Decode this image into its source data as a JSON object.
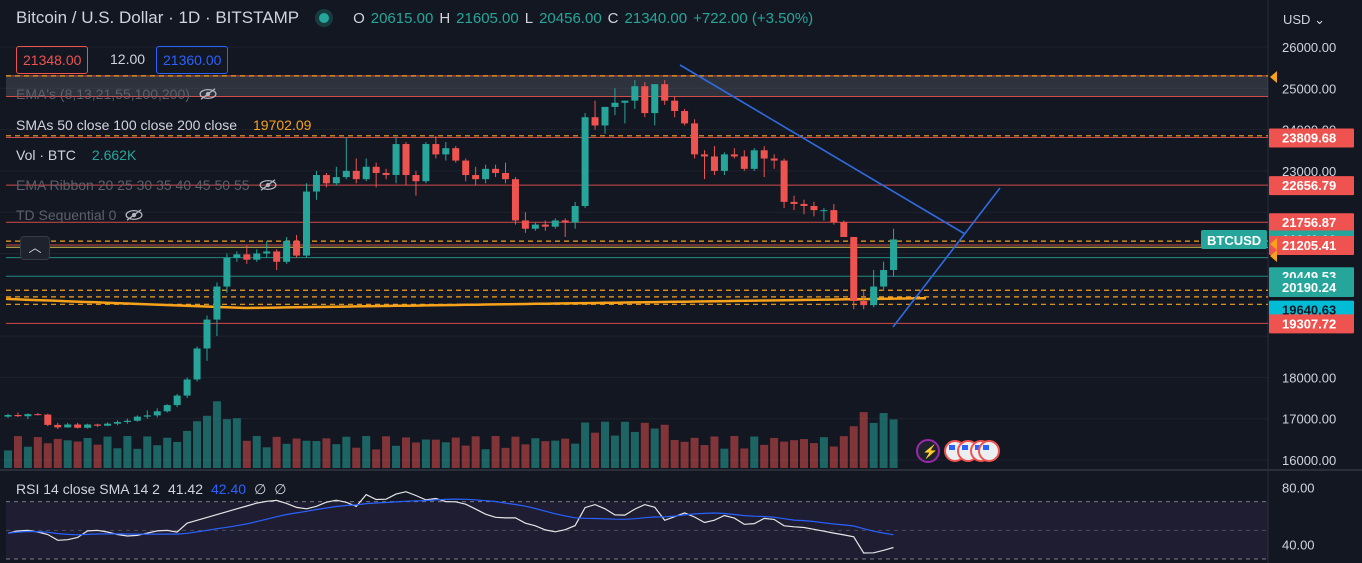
{
  "header": {
    "title": "Bitcoin / U.S. Dollar · 1D · BITSTAMP",
    "open_label": "O",
    "open": "20615.00",
    "high_label": "H",
    "high": "21605.00",
    "low_label": "L",
    "low": "20456.00",
    "close_label": "C",
    "close": "21340.00",
    "change": "+722.00 (+3.50%)"
  },
  "prices": {
    "bid": "21348.00",
    "spread": "12.00",
    "ask": "21360.00"
  },
  "currency": "USD",
  "indicators": {
    "ema": "EMA's (8,13,21,55,100,200)",
    "sma": "SMAs 50 close 100 close 200 close",
    "sma_value": "19702.09",
    "vol": "Vol · BTC",
    "vol_value": "2.662K",
    "ribbon": "EMA Ribbon 20 25 30 35 40 45 50 55",
    "td": "TD Sequential 0"
  },
  "rsi": {
    "label": "RSI 14 close SMA 14 2",
    "value1": "41.42",
    "value2": "42.40",
    "value3": "∅",
    "value4": "∅"
  },
  "colors": {
    "bg": "#131722",
    "up": "#26a69a",
    "down": "#ef5350",
    "blue": "#2962ff",
    "orange": "#f7a21b",
    "trend": "#2f6be0"
  },
  "chart_data": {
    "type": "candlestick",
    "symbol_tag": "BTCUSD",
    "ylim": [
      15900,
      26400
    ],
    "y_ticks": [
      16000,
      17000,
      18000,
      19000,
      20000,
      21000,
      22000,
      23000,
      24000,
      25000,
      26000
    ],
    "y_tick_labels": [
      "16000.00",
      "17000.00",
      "18000.00",
      "",
      "",
      "",
      "",
      "23000.00",
      "24000.00",
      "25000.00",
      "26000.00"
    ],
    "level_labels": [
      {
        "value": 23809.68,
        "label": "23809.68",
        "color": "#ef5350"
      },
      {
        "value": 22656.79,
        "label": "22656.79",
        "color": "#ef5350"
      },
      {
        "value": 21756.87,
        "label": "21756.87",
        "color": "#ef5350"
      },
      {
        "value": 21340.0,
        "label": "21340.00",
        "color": "#26a69a"
      },
      {
        "value": 21205.41,
        "label": "21205.41",
        "color": "#ef5350"
      },
      {
        "value": 20449.53,
        "label": "20449.53",
        "color": "#26a69a"
      },
      {
        "value": 20190.24,
        "label": "20190.24",
        "color": "#26a69a"
      },
      {
        "value": 19640.63,
        "label": "19640.63",
        "color": "#00bcd4"
      },
      {
        "value": 19307.72,
        "label": "19307.72",
        "color": "#ef5350"
      }
    ],
    "lines_red": [
      25300,
      24800,
      23809.68,
      22656.79,
      21756.87,
      21205.41,
      19307.72
    ],
    "lines_dashed_orange": [
      25300,
      23850,
      21300,
      20110,
      19950,
      19770
    ],
    "lines_teal": [
      20900,
      20449.53
    ],
    "candles": [
      [
        17050,
        17120,
        17020,
        17090
      ],
      [
        17090,
        17150,
        17040,
        17060
      ],
      [
        17060,
        17130,
        16990,
        17110
      ],
      [
        17110,
        17140,
        17080,
        17100
      ],
      [
        17100,
        17120,
        16820,
        16850
      ],
      [
        16850,
        16900,
        16750,
        16790
      ],
      [
        16790,
        16900,
        16780,
        16860
      ],
      [
        16860,
        16900,
        16760,
        16780
      ],
      [
        16780,
        16880,
        16760,
        16860
      ],
      [
        16860,
        16880,
        16800,
        16830
      ],
      [
        16830,
        16910,
        16820,
        16880
      ],
      [
        16880,
        16960,
        16840,
        16920
      ],
      [
        16920,
        17000,
        16880,
        16950
      ],
      [
        16950,
        17080,
        16930,
        17050
      ],
      [
        17050,
        17200,
        17000,
        17080
      ],
      [
        17080,
        17250,
        17030,
        17180
      ],
      [
        17180,
        17350,
        17150,
        17330
      ],
      [
        17330,
        17600,
        17280,
        17560
      ],
      [
        17560,
        18000,
        17500,
        17950
      ],
      [
        17950,
        18750,
        17900,
        18700
      ],
      [
        18700,
        19500,
        18400,
        19400
      ],
      [
        19400,
        20300,
        19000,
        20200
      ],
      [
        20200,
        21000,
        20050,
        20900
      ],
      [
        20900,
        21050,
        20800,
        20980
      ],
      [
        20980,
        21200,
        20750,
        20850
      ],
      [
        20850,
        21100,
        20800,
        21000
      ],
      [
        21000,
        21300,
        20900,
        21050
      ],
      [
        21050,
        21100,
        20600,
        20800
      ],
      [
        20800,
        21400,
        20750,
        21300
      ],
      [
        21300,
        21450,
        20900,
        20950
      ],
      [
        20950,
        22700,
        20900,
        22500
      ],
      [
        22500,
        23000,
        22300,
        22900
      ],
      [
        22900,
        22950,
        22600,
        22700
      ],
      [
        22700,
        23100,
        22650,
        22850
      ],
      [
        22850,
        23800,
        22800,
        23000
      ],
      [
        23000,
        23300,
        22700,
        22800
      ],
      [
        22800,
        23300,
        22750,
        23100
      ],
      [
        23100,
        23200,
        22600,
        22950
      ],
      [
        22950,
        23050,
        22800,
        22900
      ],
      [
        22900,
        23800,
        22700,
        23650
      ],
      [
        23650,
        23700,
        22650,
        22900
      ],
      [
        22900,
        23000,
        22400,
        22750
      ],
      [
        22750,
        23700,
        22700,
        23650
      ],
      [
        23650,
        23850,
        23300,
        23400
      ],
      [
        23400,
        23700,
        23250,
        23550
      ],
      [
        23550,
        23600,
        23200,
        23250
      ],
      [
        23250,
        23300,
        22750,
        22900
      ],
      [
        22900,
        23100,
        22650,
        22800
      ],
      [
        22800,
        23150,
        22700,
        23050
      ],
      [
        23050,
        23150,
        22850,
        22950
      ],
      [
        22950,
        23200,
        22700,
        22800
      ],
      [
        22800,
        22850,
        21700,
        21800
      ],
      [
        21800,
        22000,
        21500,
        21600
      ],
      [
        21600,
        21750,
        21550,
        21700
      ],
      [
        21700,
        21800,
        21550,
        21650
      ],
      [
        21650,
        21850,
        21600,
        21800
      ],
      [
        21800,
        21850,
        21400,
        21750
      ],
      [
        21750,
        22250,
        21600,
        22150
      ],
      [
        22150,
        24400,
        22100,
        24300
      ],
      [
        24300,
        24700,
        24000,
        24100
      ],
      [
        24100,
        24450,
        23900,
        24550
      ],
      [
        24550,
        25000,
        24350,
        24650
      ],
      [
        24650,
        24700,
        24150,
        24700
      ],
      [
        24700,
        25200,
        24500,
        25050
      ],
      [
        25050,
        25150,
        24300,
        24400
      ],
      [
        24400,
        25100,
        24100,
        25100
      ],
      [
        25100,
        25200,
        24600,
        24700
      ],
      [
        24700,
        24800,
        24300,
        24450
      ],
      [
        24450,
        24500,
        24100,
        24150
      ],
      [
        24150,
        24250,
        23300,
        23400
      ],
      [
        23400,
        23500,
        22800,
        23350
      ],
      [
        23350,
        23600,
        22900,
        23000
      ],
      [
        23000,
        23450,
        22900,
        23400
      ],
      [
        23400,
        23550,
        23300,
        23350
      ],
      [
        23350,
        23500,
        23000,
        23050
      ],
      [
        23050,
        23550,
        23000,
        23500
      ],
      [
        23500,
        23600,
        22850,
        23300
      ],
      [
        23300,
        23400,
        23050,
        23250
      ],
      [
        23250,
        23300,
        22100,
        22250
      ],
      [
        22250,
        22400,
        22050,
        22200
      ],
      [
        22200,
        22300,
        21950,
        22150
      ],
      [
        22150,
        22250,
        21900,
        22050
      ],
      [
        22050,
        22100,
        21800,
        22050
      ],
      [
        22050,
        22200,
        21700,
        21750
      ],
      [
        21750,
        21800,
        21400,
        21400
      ],
      [
        21400,
        21400,
        19650,
        19850
      ],
      [
        19850,
        20100,
        19650,
        19750
      ],
      [
        19750,
        20600,
        19700,
        20200
      ],
      [
        20200,
        20800,
        20100,
        20600
      ],
      [
        20600,
        21600,
        20450,
        21340
      ]
    ],
    "volume_max": 1.0,
    "rsi_ylim": [
      30,
      90
    ],
    "rsi_ticks": [
      40,
      80
    ],
    "rsi_upper": 70,
    "rsi_lower": 30
  }
}
